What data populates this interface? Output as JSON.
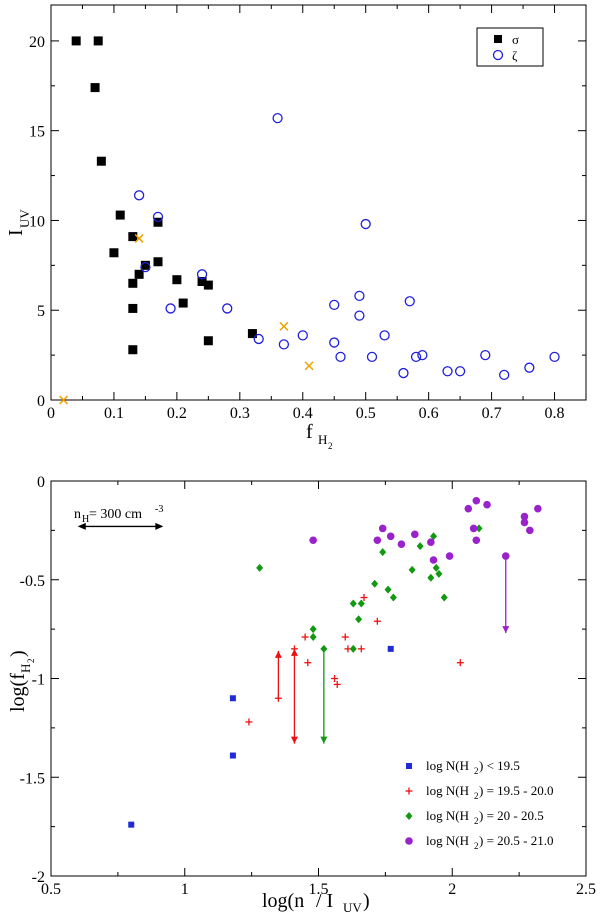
{
  "colors": {
    "sigma": "#000000",
    "zeta": "#1f1fdd",
    "cross": "#f0a000",
    "blue": "#1f2ad8",
    "red": "#ee1111",
    "green": "#119911",
    "purple": "#9922cc"
  },
  "chart_data": [
    {
      "type": "scatter",
      "title": "",
      "xlabel": "f",
      "xlabel_sub": "H",
      "xlabel_subsub": "2",
      "ylabel": "I",
      "ylabel_sub": "UV",
      "xlim": [
        0,
        0.85
      ],
      "ylim": [
        0,
        22
      ],
      "x_ticks": [
        0,
        0.1,
        0.2,
        0.3,
        0.4,
        0.5,
        0.6,
        0.7,
        0.8
      ],
      "x_tick_labels": [
        "0",
        "0.1",
        "0.2",
        "0.3",
        "0.4",
        "0.5",
        "0.6",
        "0.7",
        "0.8"
      ],
      "y_ticks": [
        0,
        5,
        10,
        15,
        20
      ],
      "y_tick_labels": [
        "0",
        "5",
        "10",
        "15",
        "20"
      ],
      "legend_position": "top-right",
      "series": [
        {
          "name": "σ",
          "marker": "filled-square",
          "points": [
            [
              0.04,
              20.0
            ],
            [
              0.075,
              20.0
            ],
            [
              0.07,
              17.4
            ],
            [
              0.08,
              13.3
            ],
            [
              0.11,
              10.3
            ],
            [
              0.13,
              9.1
            ],
            [
              0.17,
              9.9
            ],
            [
              0.1,
              8.2
            ],
            [
              0.15,
              7.5
            ],
            [
              0.17,
              7.7
            ],
            [
              0.14,
              7.0
            ],
            [
              0.2,
              6.7
            ],
            [
              0.13,
              6.5
            ],
            [
              0.24,
              6.6
            ],
            [
              0.25,
              6.4
            ],
            [
              0.21,
              5.4
            ],
            [
              0.13,
              5.1
            ],
            [
              0.32,
              3.7
            ],
            [
              0.25,
              3.3
            ],
            [
              0.13,
              2.8
            ]
          ]
        },
        {
          "name": "ζ",
          "marker": "open-circle",
          "points": [
            [
              0.36,
              15.7
            ],
            [
              0.14,
              11.4
            ],
            [
              0.17,
              10.2
            ],
            [
              0.5,
              9.8
            ],
            [
              0.15,
              7.4
            ],
            [
              0.24,
              7.0
            ],
            [
              0.19,
              5.1
            ],
            [
              0.28,
              5.1
            ],
            [
              0.49,
              5.8
            ],
            [
              0.57,
              5.5
            ],
            [
              0.45,
              5.3
            ],
            [
              0.49,
              4.7
            ],
            [
              0.4,
              3.6
            ],
            [
              0.53,
              3.6
            ],
            [
              0.33,
              3.4
            ],
            [
              0.37,
              3.1
            ],
            [
              0.45,
              3.2
            ],
            [
              0.46,
              2.4
            ],
            [
              0.51,
              2.4
            ],
            [
              0.58,
              2.4
            ],
            [
              0.59,
              2.5
            ],
            [
              0.69,
              2.5
            ],
            [
              0.8,
              2.4
            ],
            [
              0.56,
              1.5
            ],
            [
              0.63,
              1.6
            ],
            [
              0.65,
              1.6
            ],
            [
              0.72,
              1.4
            ],
            [
              0.76,
              1.8
            ]
          ]
        },
        {
          "name": "",
          "marker": "cross",
          "points": [
            [
              0.02,
              0.0
            ],
            [
              0.14,
              9.0
            ],
            [
              0.37,
              4.1
            ],
            [
              0.41,
              1.9
            ]
          ]
        }
      ]
    },
    {
      "type": "scatter",
      "title": "",
      "xlabel": "log(n",
      "xlabel_sub1": "H",
      "xlabel_mid": " / I",
      "xlabel_sub2": "UV",
      "xlabel_end": ")",
      "ylabel": "log(f",
      "ylabel_sub": "H",
      "ylabel_subsub": "2",
      "ylabel_end": ")",
      "xlim": [
        0.5,
        2.5
      ],
      "ylim": [
        -2,
        0
      ],
      "x_ticks": [
        0.5,
        1,
        1.5,
        2,
        2.5
      ],
      "x_tick_labels": [
        "0.5",
        "1",
        "1.5",
        "2",
        "2.5"
      ],
      "y_ticks": [
        -2,
        -1.5,
        -1,
        -0.5,
        0
      ],
      "y_tick_labels": [
        "-2",
        "-1.5",
        "-1",
        "-0.5",
        "0"
      ],
      "legend_position": "bottom-right",
      "annotation": {
        "text": "n",
        "sub": "H",
        "rest": " = 300 cm",
        "sup": "-3",
        "arrow_from": 0.6,
        "arrow_to": 0.92,
        "arrow_y": -0.23
      },
      "series": [
        {
          "name": "log N(H2) < 19.5",
          "label_main": "log N(H",
          "label_sub": "2",
          "label_rest": ") < 19.5",
          "color_key": "blue",
          "marker": "square",
          "points": [
            [
              0.8,
              -1.74
            ],
            [
              1.18,
              -1.1
            ],
            [
              1.18,
              -1.39
            ],
            [
              1.77,
              -0.85
            ]
          ]
        },
        {
          "name": "log N(H2) = 19.5 - 20.0",
          "label_main": "log N(H",
          "label_sub": "2",
          "label_rest": ") = 19.5 - 20.0",
          "color_key": "red",
          "marker": "plus",
          "points": [
            [
              1.24,
              -1.22
            ],
            [
              1.45,
              -0.79
            ],
            [
              1.46,
              -0.92
            ],
            [
              1.56,
              -1.0
            ],
            [
              1.6,
              -0.79
            ],
            [
              1.61,
              -0.85
            ],
            [
              1.66,
              -0.85
            ],
            [
              1.67,
              -0.59
            ],
            [
              1.72,
              -0.71
            ],
            [
              2.03,
              -0.92
            ],
            [
              1.35,
              -1.1
            ],
            [
              1.41,
              -0.85
            ],
            [
              1.57,
              -1.03
            ]
          ]
        },
        {
          "name": "log N(H2) = 20 - 20.5",
          "label_main": "log N(H",
          "label_sub": "2",
          "label_rest": ") = 20 - 20.5",
          "color_key": "green",
          "marker": "diamond",
          "points": [
            [
              1.28,
              -0.44
            ],
            [
              1.48,
              -0.75
            ],
            [
              1.48,
              -0.79
            ],
            [
              1.52,
              -0.85
            ],
            [
              1.63,
              -0.85
            ],
            [
              1.63,
              -0.62
            ],
            [
              1.65,
              -0.7
            ],
            [
              1.66,
              -0.62
            ],
            [
              1.71,
              -0.52
            ],
            [
              1.74,
              -0.36
            ],
            [
              1.76,
              -0.55
            ],
            [
              1.78,
              -0.59
            ],
            [
              1.85,
              -0.45
            ],
            [
              1.88,
              -0.33
            ],
            [
              1.92,
              -0.49
            ],
            [
              1.93,
              -0.28
            ],
            [
              1.94,
              -0.44
            ],
            [
              1.95,
              -0.47
            ],
            [
              1.97,
              -0.59
            ],
            [
              2.1,
              -0.24
            ]
          ]
        },
        {
          "name": "log N(H2) = 20.5 - 21.0",
          "label_main": "log N(H",
          "label_sub": "2",
          "label_rest": ") = 20.5 - 21.0",
          "color_key": "purple",
          "marker": "circle",
          "points": [
            [
              1.48,
              -0.3
            ],
            [
              1.72,
              -0.3
            ],
            [
              1.74,
              -0.24
            ],
            [
              1.77,
              -0.28
            ],
            [
              1.81,
              -0.32
            ],
            [
              1.86,
              -0.27
            ],
            [
              1.92,
              -0.31
            ],
            [
              1.93,
              -0.4
            ],
            [
              1.99,
              -0.38
            ],
            [
              2.06,
              -0.14
            ],
            [
              2.08,
              -0.24
            ],
            [
              2.09,
              -0.1
            ],
            [
              2.09,
              -0.3
            ],
            [
              2.13,
              -0.12
            ],
            [
              2.2,
              -0.38
            ],
            [
              2.27,
              -0.18
            ],
            [
              2.27,
              -0.21
            ],
            [
              2.29,
              -0.25
            ],
            [
              2.32,
              -0.14
            ]
          ]
        }
      ],
      "arrows": [
        {
          "color_key": "red",
          "x": 1.35,
          "y_from": -1.1,
          "y_to": -0.86,
          "heads": "up"
        },
        {
          "color_key": "red",
          "x": 1.41,
          "y_from": -0.85,
          "y_to": -1.33,
          "heads": "both"
        },
        {
          "color_key": "green",
          "x": 1.52,
          "y_from": -0.85,
          "y_to": -1.33,
          "heads": "down"
        },
        {
          "color_key": "purple",
          "x": 2.2,
          "y_from": -0.38,
          "y_to": -0.77,
          "heads": "down"
        }
      ]
    }
  ]
}
